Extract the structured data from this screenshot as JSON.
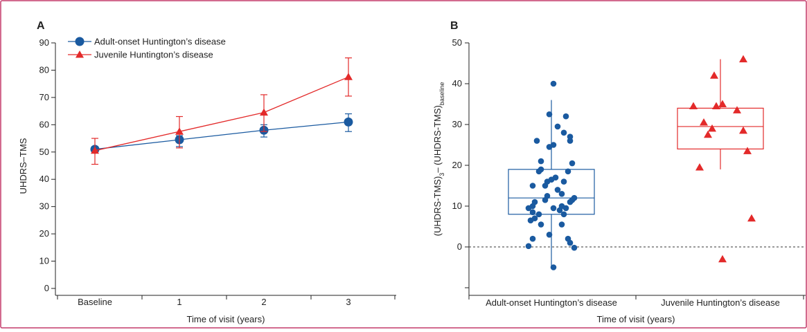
{
  "colors": {
    "adult": "#1a5aa0",
    "juvenile": "#e32a2a",
    "axis": "#222222",
    "frame": "#c33a6a"
  },
  "chart_data": [
    {
      "panel": "A",
      "type": "line",
      "categories": [
        "Baseline",
        "1",
        "2",
        "3"
      ],
      "xlabel": "Time of visit (years)",
      "ylabel": "UHDRS–TMS",
      "ylim": [
        0,
        90
      ],
      "yticks": [
        0,
        10,
        20,
        30,
        40,
        50,
        60,
        70,
        80,
        90
      ],
      "legend_position": "top-left",
      "series": [
        {
          "name": "Adult-onset Huntington’s disease",
          "marker": "circle",
          "values": [
            51,
            54.5,
            58,
            61
          ],
          "err_low": [
            50,
            52,
            55.5,
            57.5
          ],
          "err_high": [
            52,
            56,
            60,
            64
          ]
        },
        {
          "name": "Juvenile Huntington’s disease",
          "marker": "triangle",
          "values": [
            50.5,
            57.5,
            64.5,
            77.5
          ],
          "err_low": [
            45.5,
            51.5,
            57.5,
            70.5
          ],
          "err_high": [
            55,
            63,
            71,
            84.5
          ]
        }
      ]
    },
    {
      "panel": "B",
      "type": "scatter",
      "categories": [
        "Adult-onset Huntington’s disease",
        "Juvenile Huntington’s disease"
      ],
      "xlabel": "Time of visit (years)",
      "ylabel_main": "(UHDRS-TMS)",
      "ylabel_sub1": "3",
      "ylabel_mid": "– (UHDRS-TMS)",
      "ylabel_sub2": "baseline",
      "ylim": [
        -10,
        50
      ],
      "yticks": [
        0,
        10,
        20,
        30,
        40,
        50
      ],
      "reference_line": 0,
      "boxes": [
        {
          "group": "Adult-onset Huntington’s disease",
          "q1": 8,
          "median": 12,
          "q3": 19,
          "whisker_low": -5,
          "whisker_high": 36
        },
        {
          "group": "Juvenile Huntington’s disease",
          "q1": 24,
          "median": 29.5,
          "q3": 34,
          "whisker_low": 19,
          "whisker_high": 46
        }
      ],
      "points": {
        "adult": [
          [
            -0.35,
            26
          ],
          [
            0.05,
            40
          ],
          [
            -0.05,
            32.5
          ],
          [
            0.35,
            32
          ],
          [
            0.15,
            29.5
          ],
          [
            0.3,
            28
          ],
          [
            0.45,
            27
          ],
          [
            0.45,
            26
          ],
          [
            -0.05,
            24.5
          ],
          [
            0.05,
            25
          ],
          [
            0.5,
            20.5
          ],
          [
            0.4,
            18.5
          ],
          [
            -0.25,
            21
          ],
          [
            -0.25,
            19
          ],
          [
            -0.3,
            18.5
          ],
          [
            0.3,
            16
          ],
          [
            0.1,
            17
          ],
          [
            0.0,
            16.5
          ],
          [
            -0.1,
            16
          ],
          [
            -0.15,
            15
          ],
          [
            -0.45,
            15
          ],
          [
            0.15,
            14
          ],
          [
            0.25,
            13
          ],
          [
            -0.1,
            12.5
          ],
          [
            -0.4,
            11
          ],
          [
            -0.15,
            11.5
          ],
          [
            0.5,
            11.5
          ],
          [
            0.55,
            12
          ],
          [
            0.45,
            11
          ],
          [
            -0.45,
            10
          ],
          [
            0.25,
            10
          ],
          [
            0.35,
            9.5
          ],
          [
            0.2,
            9
          ],
          [
            0.05,
            9.5
          ],
          [
            -0.55,
            9.5
          ],
          [
            -0.45,
            8.5
          ],
          [
            -0.3,
            8
          ],
          [
            0.3,
            8
          ],
          [
            -0.4,
            7
          ],
          [
            -0.5,
            6.5
          ],
          [
            -0.25,
            5.5
          ],
          [
            0.25,
            5.5
          ],
          [
            -0.05,
            3
          ],
          [
            -0.45,
            2
          ],
          [
            0.4,
            2
          ],
          [
            0.45,
            1
          ],
          [
            -0.55,
            0.2
          ],
          [
            0.55,
            -0.2
          ],
          [
            0.05,
            -5
          ]
        ],
        "juvenile": [
          [
            -0.65,
            34.5
          ],
          [
            -0.1,
            34.5
          ],
          [
            0.05,
            35
          ],
          [
            0.4,
            33.5
          ],
          [
            -0.15,
            42
          ],
          [
            0.55,
            46
          ],
          [
            -0.4,
            30.5
          ],
          [
            -0.2,
            29
          ],
          [
            0.55,
            28.5
          ],
          [
            -0.3,
            27.5
          ],
          [
            0.65,
            23.5
          ],
          [
            -0.5,
            19.5
          ],
          [
            0.75,
            7
          ],
          [
            0.05,
            -3
          ]
        ]
      }
    }
  ]
}
